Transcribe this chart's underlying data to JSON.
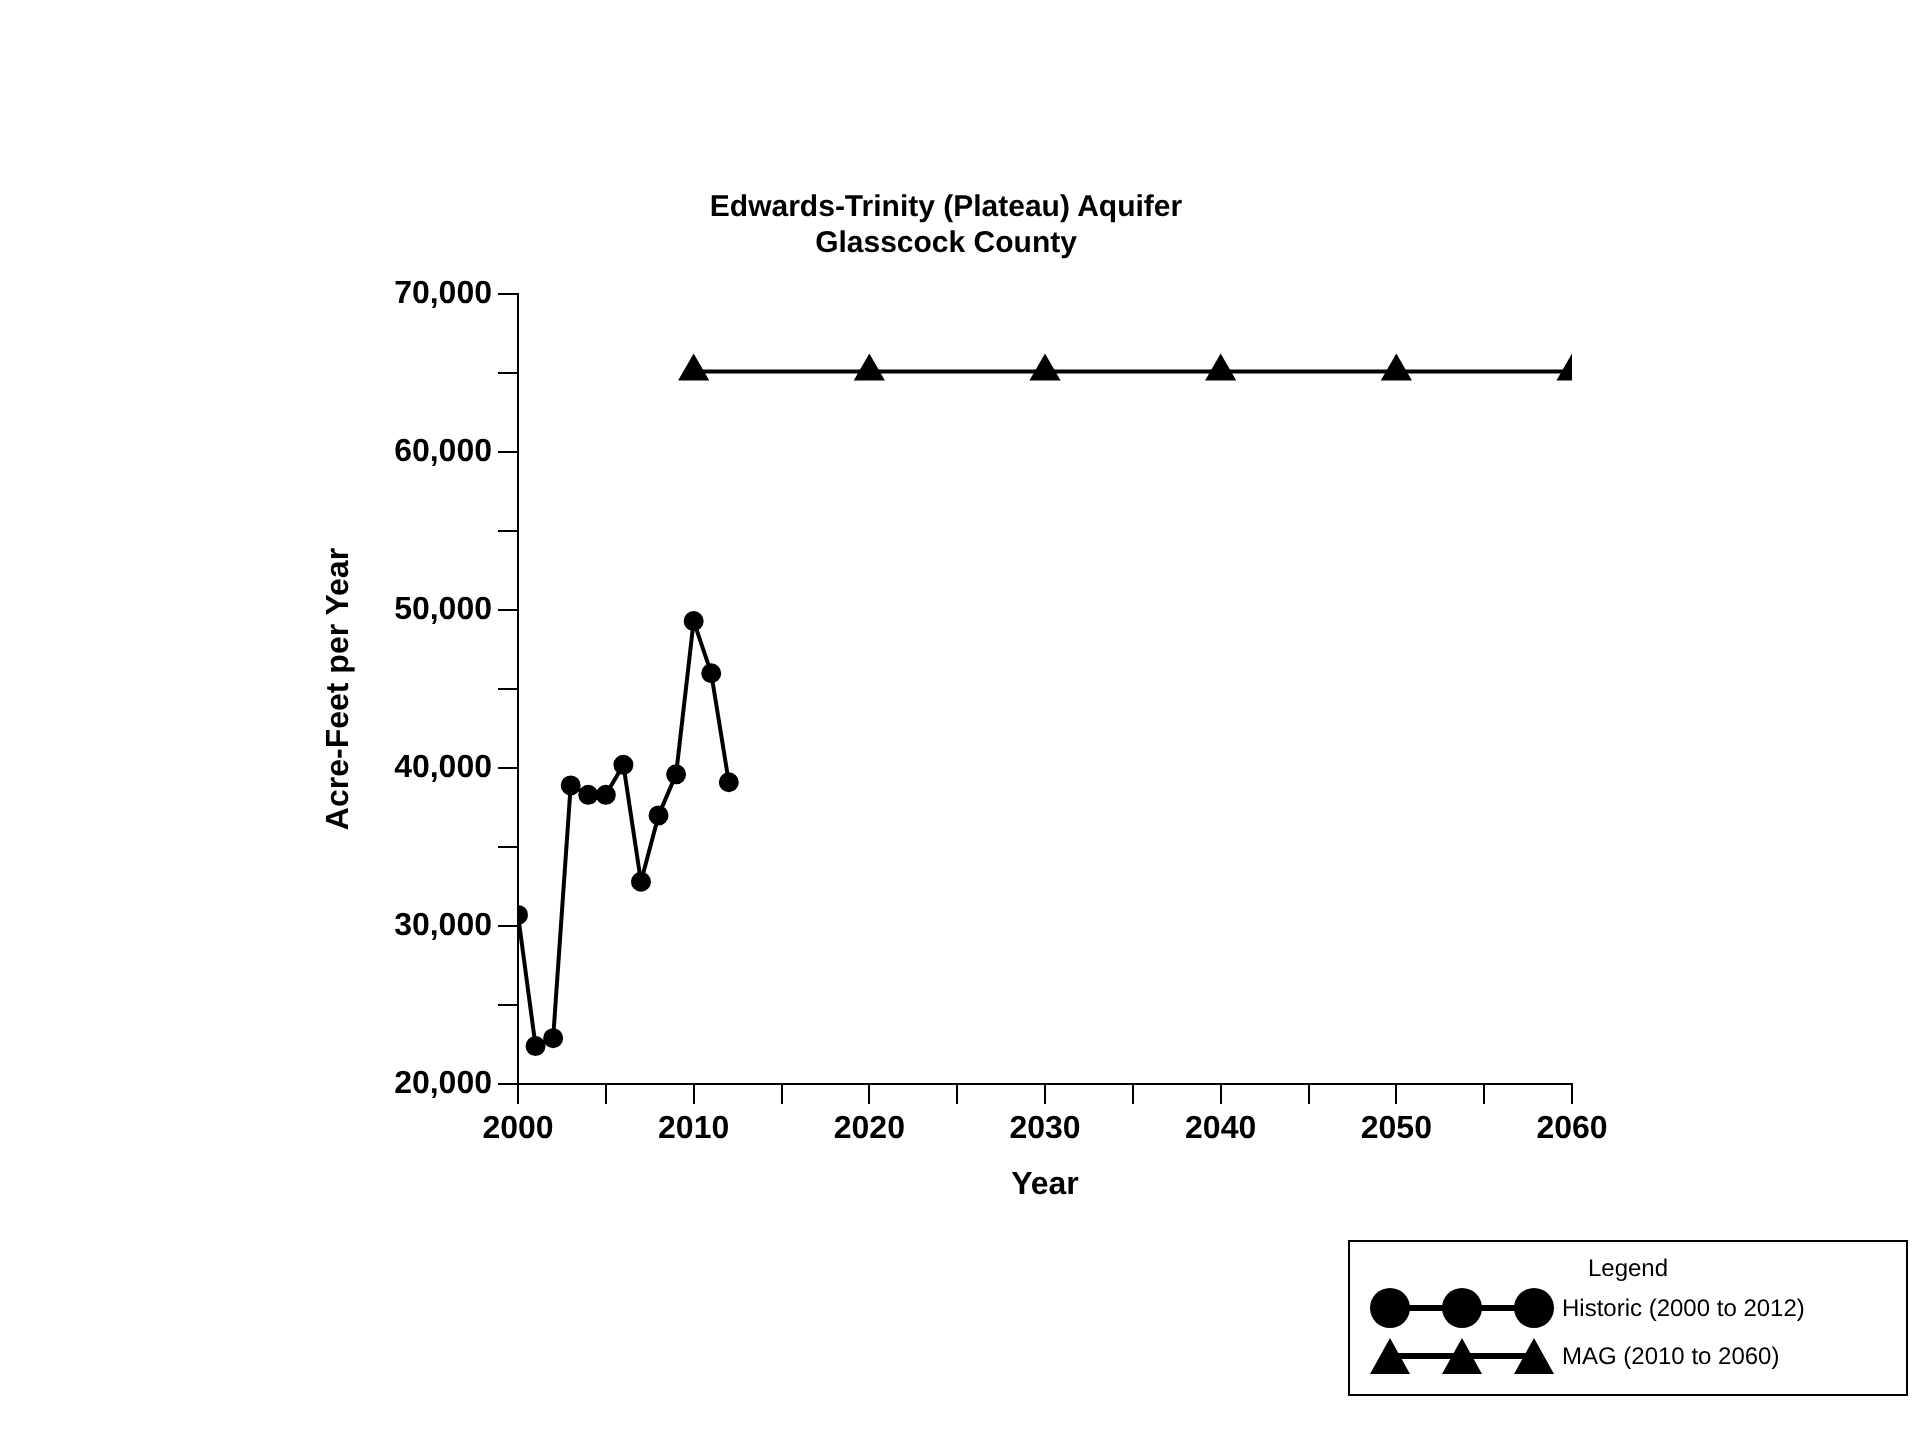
{
  "chart_data": {
    "type": "line",
    "title": "Edwards-Trinity (Plateau) Aquifer",
    "subtitle": "Glasscock County",
    "xlabel": "Year",
    "ylabel": "Acre-Feet per Year",
    "legend_title": "Legend",
    "legend": "bottom right",
    "grid": false,
    "xlim": [
      2000,
      2060
    ],
    "xticks": [
      2000,
      {
        "value": 2005,
        "label": null
      },
      2010,
      {
        "value": 2015,
        "label": null
      },
      2020,
      {
        "value": 2025,
        "label": null
      },
      2030,
      {
        "value": 2035,
        "label": null
      },
      2040,
      {
        "value": 2045,
        "label": null
      },
      2050,
      {
        "value": 2055,
        "label": null
      },
      2060
    ],
    "ylim": [
      20000,
      70000
    ],
    "yticks": [
      {
        "value": 20000,
        "label": "20,000"
      },
      {
        "value": 25000,
        "label": null
      },
      {
        "value": 30000,
        "label": "30,000"
      },
      {
        "value": 35000,
        "label": null
      },
      {
        "value": 40000,
        "label": "40,000"
      },
      {
        "value": 45000,
        "label": null
      },
      {
        "value": 50000,
        "label": "50,000"
      },
      {
        "value": 55000,
        "label": null
      },
      {
        "value": 60000,
        "label": "60,000"
      },
      {
        "value": 65000,
        "label": null
      },
      {
        "value": 70000,
        "label": "70,000"
      }
    ],
    "series": [
      {
        "name": "Historic (2000 to 2012)",
        "color": "#000000",
        "marker": "circle",
        "x": [
          2000,
          2001,
          2002,
          2003,
          2004,
          2005,
          2006,
          2007,
          2008,
          2009,
          2010,
          2011,
          2012
        ],
        "values": [
          30700,
          22400,
          22900,
          38900,
          38300,
          38300,
          40200,
          32800,
          37000,
          39600,
          49300,
          46000,
          39100
        ]
      },
      {
        "name": "MAG (2010 to 2060)",
        "color": "#000000",
        "marker": "triangle",
        "x": [
          2010,
          2020,
          2030,
          2040,
          2050,
          2060
        ],
        "values": [
          65100,
          65100,
          65100,
          65100,
          65100,
          65100
        ]
      }
    ]
  }
}
